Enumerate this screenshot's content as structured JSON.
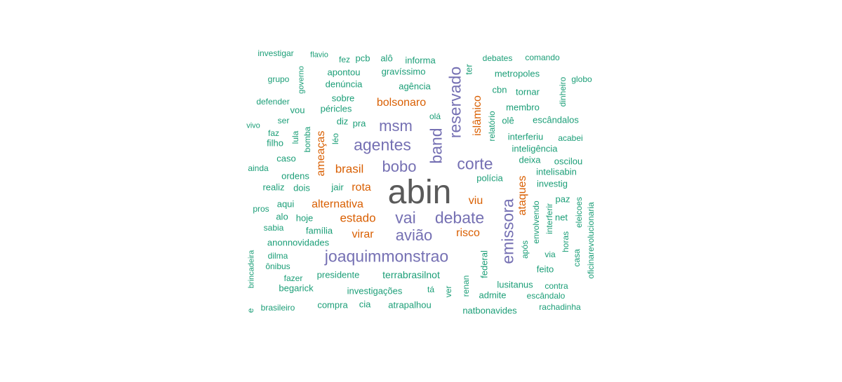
{
  "colors": {
    "dominant": "#5a5a5a",
    "purple": "#7570b3",
    "orange": "#d95f02",
    "teal": "#1b9e77"
  },
  "words": [
    {
      "text": "abin",
      "size": 48,
      "color": "dominant",
      "vertical": false
    },
    {
      "text": "joaquimmonstrao",
      "size": 23,
      "color": "purple",
      "vertical": false
    },
    {
      "text": "reservado",
      "size": 23,
      "color": "purple",
      "vertical": true
    },
    {
      "text": "emissora",
      "size": 23,
      "color": "purple",
      "vertical": true
    },
    {
      "text": "agentes",
      "size": 23,
      "color": "purple",
      "vertical": false
    },
    {
      "text": "debate",
      "size": 23,
      "color": "purple",
      "vertical": false
    },
    {
      "text": "band",
      "size": 23,
      "color": "purple",
      "vertical": true
    },
    {
      "text": "corte",
      "size": 23,
      "color": "purple",
      "vertical": false
    },
    {
      "text": "bobo",
      "size": 22,
      "color": "purple",
      "vertical": false
    },
    {
      "text": "msm",
      "size": 22,
      "color": "purple",
      "vertical": false
    },
    {
      "text": "vai",
      "size": 23,
      "color": "purple",
      "vertical": false
    },
    {
      "text": "avião",
      "size": 22,
      "color": "purple",
      "vertical": false
    },
    {
      "text": "bolsonaro",
      "size": 16,
      "color": "orange",
      "vertical": false
    },
    {
      "text": "islâmico",
      "size": 16,
      "color": "orange",
      "vertical": true
    },
    {
      "text": "ameaças",
      "size": 16,
      "color": "orange",
      "vertical": true
    },
    {
      "text": "brasil",
      "size": 17,
      "color": "orange",
      "vertical": false
    },
    {
      "text": "rota",
      "size": 16,
      "color": "orange",
      "vertical": false
    },
    {
      "text": "alternativa",
      "size": 16,
      "color": "orange",
      "vertical": false
    },
    {
      "text": "estado",
      "size": 17,
      "color": "orange",
      "vertical": false
    },
    {
      "text": "virar",
      "size": 16,
      "color": "orange",
      "vertical": false
    },
    {
      "text": "ataques",
      "size": 16,
      "color": "orange",
      "vertical": true
    },
    {
      "text": "viu",
      "size": 16,
      "color": "orange",
      "vertical": false
    },
    {
      "text": "risco",
      "size": 16,
      "color": "orange",
      "vertical": false
    },
    {
      "text": "investigar",
      "size": 12,
      "color": "teal",
      "vertical": false
    },
    {
      "text": "flavio",
      "size": 11,
      "color": "teal",
      "vertical": false
    },
    {
      "text": "fez",
      "size": 12,
      "color": "teal",
      "vertical": false
    },
    {
      "text": "pcb",
      "size": 13,
      "color": "teal",
      "vertical": false
    },
    {
      "text": "alô",
      "size": 13,
      "color": "teal",
      "vertical": false
    },
    {
      "text": "informa",
      "size": 13,
      "color": "teal",
      "vertical": false
    },
    {
      "text": "debates",
      "size": 12,
      "color": "teal",
      "vertical": false
    },
    {
      "text": "comando",
      "size": 12,
      "color": "teal",
      "vertical": false
    },
    {
      "text": "grupo",
      "size": 12,
      "color": "teal",
      "vertical": false
    },
    {
      "text": "governo",
      "size": 11,
      "color": "teal",
      "vertical": true
    },
    {
      "text": "apontou",
      "size": 13,
      "color": "teal",
      "vertical": false
    },
    {
      "text": "gravíssimo",
      "size": 13,
      "color": "teal",
      "vertical": false
    },
    {
      "text": "ter",
      "size": 13,
      "color": "teal",
      "vertical": true
    },
    {
      "text": "metropoles",
      "size": 13,
      "color": "teal",
      "vertical": false
    },
    {
      "text": "dinheiro",
      "size": 12,
      "color": "teal",
      "vertical": true
    },
    {
      "text": "globo",
      "size": 12,
      "color": "teal",
      "vertical": false
    },
    {
      "text": "denúncia",
      "size": 13,
      "color": "teal",
      "vertical": false
    },
    {
      "text": "agência",
      "size": 13,
      "color": "teal",
      "vertical": false
    },
    {
      "text": "cbn",
      "size": 13,
      "color": "teal",
      "vertical": false
    },
    {
      "text": "tornar",
      "size": 13,
      "color": "teal",
      "vertical": false
    },
    {
      "text": "defender",
      "size": 12,
      "color": "teal",
      "vertical": false
    },
    {
      "text": "sobre",
      "size": 13,
      "color": "teal",
      "vertical": false
    },
    {
      "text": "vou",
      "size": 13,
      "color": "teal",
      "vertical": false
    },
    {
      "text": "péricles",
      "size": 13,
      "color": "teal",
      "vertical": false
    },
    {
      "text": "membro",
      "size": 13,
      "color": "teal",
      "vertical": false
    },
    {
      "text": "olá",
      "size": 12,
      "color": "teal",
      "vertical": false
    },
    {
      "text": "relatório",
      "size": 12,
      "color": "teal",
      "vertical": true
    },
    {
      "text": "olê",
      "size": 13,
      "color": "teal",
      "vertical": false
    },
    {
      "text": "escândalos",
      "size": 13,
      "color": "teal",
      "vertical": false
    },
    {
      "text": "ser",
      "size": 12,
      "color": "teal",
      "vertical": false
    },
    {
      "text": "vivo",
      "size": 11,
      "color": "teal",
      "vertical": false
    },
    {
      "text": "diz",
      "size": 13,
      "color": "teal",
      "vertical": false
    },
    {
      "text": "pra",
      "size": 13,
      "color": "teal",
      "vertical": false
    },
    {
      "text": "faz",
      "size": 12,
      "color": "teal",
      "vertical": false
    },
    {
      "text": "lula",
      "size": 12,
      "color": "teal",
      "vertical": true
    },
    {
      "text": "bomba",
      "size": 12,
      "color": "teal",
      "vertical": true
    },
    {
      "text": "léo",
      "size": 12,
      "color": "teal",
      "vertical": true
    },
    {
      "text": "interferiu",
      "size": 13,
      "color": "teal",
      "vertical": false
    },
    {
      "text": "acabei",
      "size": 12,
      "color": "teal",
      "vertical": false
    },
    {
      "text": "filho",
      "size": 13,
      "color": "teal",
      "vertical": false
    },
    {
      "text": "inteligência",
      "size": 13,
      "color": "teal",
      "vertical": false
    },
    {
      "text": "caso",
      "size": 13,
      "color": "teal",
      "vertical": false
    },
    {
      "text": "deixa",
      "size": 13,
      "color": "teal",
      "vertical": false
    },
    {
      "text": "oscilou",
      "size": 13,
      "color": "teal",
      "vertical": false
    },
    {
      "text": "ainda",
      "size": 12,
      "color": "teal",
      "vertical": false
    },
    {
      "text": "intelisabin",
      "size": 13,
      "color": "teal",
      "vertical": false
    },
    {
      "text": "ordens",
      "size": 13,
      "color": "teal",
      "vertical": false
    },
    {
      "text": "polícia",
      "size": 13,
      "color": "teal",
      "vertical": false
    },
    {
      "text": "investig",
      "size": 13,
      "color": "teal",
      "vertical": false
    },
    {
      "text": "realiz",
      "size": 13,
      "color": "teal",
      "vertical": false
    },
    {
      "text": "dois",
      "size": 13,
      "color": "teal",
      "vertical": false
    },
    {
      "text": "jair",
      "size": 13,
      "color": "teal",
      "vertical": false
    },
    {
      "text": "paz",
      "size": 13,
      "color": "teal",
      "vertical": false
    },
    {
      "text": "aqui",
      "size": 13,
      "color": "teal",
      "vertical": false
    },
    {
      "text": "pros",
      "size": 12,
      "color": "teal",
      "vertical": false
    },
    {
      "text": "envolvendo",
      "size": 12,
      "color": "teal",
      "vertical": true
    },
    {
      "text": "interferir",
      "size": 12,
      "color": "teal",
      "vertical": true
    },
    {
      "text": "eleicoes",
      "size": 12,
      "color": "teal",
      "vertical": true
    },
    {
      "text": "oficinarevolucionaria",
      "size": 12,
      "color": "teal",
      "vertical": true
    },
    {
      "text": "alo",
      "size": 13,
      "color": "teal",
      "vertical": false
    },
    {
      "text": "hoje",
      "size": 13,
      "color": "teal",
      "vertical": false
    },
    {
      "text": "net",
      "size": 13,
      "color": "teal",
      "vertical": false
    },
    {
      "text": "sabia",
      "size": 12,
      "color": "teal",
      "vertical": false
    },
    {
      "text": "família",
      "size": 13,
      "color": "teal",
      "vertical": false
    },
    {
      "text": "anonnovidades",
      "size": 13,
      "color": "teal",
      "vertical": false
    },
    {
      "text": "horas",
      "size": 12,
      "color": "teal",
      "vertical": true
    },
    {
      "text": "após",
      "size": 12,
      "color": "teal",
      "vertical": true
    },
    {
      "text": "dilma",
      "size": 12,
      "color": "teal",
      "vertical": false
    },
    {
      "text": "federal",
      "size": 13,
      "color": "teal",
      "vertical": true
    },
    {
      "text": "via",
      "size": 12,
      "color": "teal",
      "vertical": false
    },
    {
      "text": "casa",
      "size": 12,
      "color": "teal",
      "vertical": true
    },
    {
      "text": "brincadeira",
      "size": 11,
      "color": "teal",
      "vertical": true
    },
    {
      "text": "ônibus",
      "size": 12,
      "color": "teal",
      "vertical": false
    },
    {
      "text": "feito",
      "size": 13,
      "color": "teal",
      "vertical": false
    },
    {
      "text": "presidente",
      "size": 13,
      "color": "teal",
      "vertical": false
    },
    {
      "text": "terrabrasilnot",
      "size": 14,
      "color": "teal",
      "vertical": false
    },
    {
      "text": "fazer",
      "size": 12,
      "color": "teal",
      "vertical": false
    },
    {
      "text": "renan",
      "size": 12,
      "color": "teal",
      "vertical": true
    },
    {
      "text": "lusitanus",
      "size": 13,
      "color": "teal",
      "vertical": false
    },
    {
      "text": "contra",
      "size": 12,
      "color": "teal",
      "vertical": false
    },
    {
      "text": "begarick",
      "size": 13,
      "color": "teal",
      "vertical": false
    },
    {
      "text": "investigações",
      "size": 13,
      "color": "teal",
      "vertical": false
    },
    {
      "text": "tá",
      "size": 12,
      "color": "teal",
      "vertical": false
    },
    {
      "text": "ver",
      "size": 12,
      "color": "teal",
      "vertical": true
    },
    {
      "text": "admite",
      "size": 13,
      "color": "teal",
      "vertical": false
    },
    {
      "text": "escândalo",
      "size": 12,
      "color": "teal",
      "vertical": false
    },
    {
      "text": "e",
      "size": 12,
      "color": "teal",
      "vertical": true
    },
    {
      "text": "brasileiro",
      "size": 12,
      "color": "teal",
      "vertical": false
    },
    {
      "text": "compra",
      "size": 13,
      "color": "teal",
      "vertical": false
    },
    {
      "text": "cia",
      "size": 13,
      "color": "teal",
      "vertical": false
    },
    {
      "text": "atrapalhou",
      "size": 13,
      "color": "teal",
      "vertical": false
    },
    {
      "text": "natbonavides",
      "size": 13,
      "color": "teal",
      "vertical": false
    },
    {
      "text": "rachadinha",
      "size": 12,
      "color": "teal",
      "vertical": false
    }
  ]
}
